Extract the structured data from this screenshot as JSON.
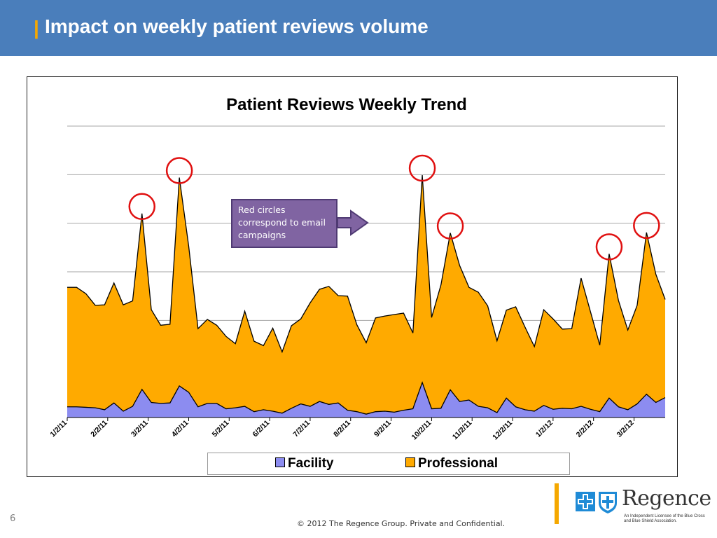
{
  "header": {
    "bar_glyph": "|",
    "title": "Impact on weekly patient reviews volume"
  },
  "callout": {
    "text": "Red circles correspond to email campaigns"
  },
  "page_number": "6",
  "footer": "© 2012 The Regence Group. Private and Confidential.",
  "logo": {
    "wordmark": "Regence",
    "tagline": "An Independent Licensee of the Blue Cross and Blue Shield Association.",
    "icons": [
      "blue-cross-icon",
      "blue-shield-icon"
    ]
  },
  "colors": {
    "header_bg": "#4a7ebb",
    "accent": "#f5a800",
    "facility": "#8c8cf0",
    "professional": "#ffaa00",
    "callout": "#8064a2",
    "highlight_circle": "#e01010"
  },
  "chart_data": {
    "type": "area",
    "stacked": true,
    "title": "Patient Reviews Weekly Trend",
    "x_tick_labels": [
      "1/2/11",
      "2/2/11",
      "3/2/11",
      "4/2/11",
      "5/2/11",
      "6/2/11",
      "7/2/11",
      "8/2/11",
      "9/2/11",
      "10/2/11",
      "11/2/11",
      "12/2/11",
      "1/2/12",
      "2/2/12",
      "3/2/12"
    ],
    "series": [
      {
        "name": "Facility",
        "values": [
          2.2,
          2.2,
          2.1,
          2.0,
          1.6,
          3.0,
          1.3,
          2.3,
          5.8,
          3.1,
          2.9,
          3.0,
          6.5,
          5.2,
          2.2,
          2.9,
          2.9,
          1.8,
          2.0,
          2.3,
          1.2,
          1.6,
          1.3,
          0.9,
          1.9,
          2.8,
          2.3,
          3.3,
          2.7,
          3.0,
          1.5,
          1.2,
          0.7,
          1.2,
          1.3,
          1.1,
          1.5,
          1.8,
          7.2,
          1.8,
          1.9,
          5.7,
          3.3,
          3.6,
          2.3,
          2.0,
          1.0,
          4.0,
          2.2,
          1.6,
          1.3,
          2.5,
          1.7,
          1.9,
          1.8,
          2.3,
          1.7,
          1.2,
          4.0,
          2.2,
          1.6,
          2.8,
          4.8,
          3.1,
          4.1
        ]
      },
      {
        "name": "Professional",
        "values": [
          24.6,
          24.6,
          23.4,
          21.1,
          21.6,
          24.7,
          21.9,
          21.7,
          36.2,
          19.1,
          16.1,
          16.2,
          42.9,
          30.1,
          16.1,
          17.3,
          16.1,
          14.9,
          13.2,
          19.6,
          14.5,
          13.2,
          17.1,
          12.6,
          17.0,
          17.5,
          21.3,
          23.1,
          24.3,
          22.1,
          23.5,
          17.9,
          14.7,
          19.3,
          19.6,
          20.1,
          20.0,
          15.6,
          42.7,
          18.8,
          25.4,
          32.3,
          28.0,
          23.2,
          23.5,
          21.0,
          14.8,
          18.1,
          20.6,
          17.0,
          13.3,
          19.7,
          18.6,
          16.3,
          16.5,
          26.4,
          20.1,
          13.7,
          29.7,
          21.9,
          16.4,
          20.3,
          33.3,
          26.4,
          20.2
        ]
      }
    ],
    "ylim": [
      0,
      60
    ],
    "y_gridlines": [
      10,
      20,
      30,
      40,
      50,
      60
    ],
    "y_tick_labels_shown": false,
    "grid": true,
    "legend_position": "bottom",
    "highlighted_weeks": [
      8,
      12,
      38,
      41,
      58,
      62
    ]
  }
}
